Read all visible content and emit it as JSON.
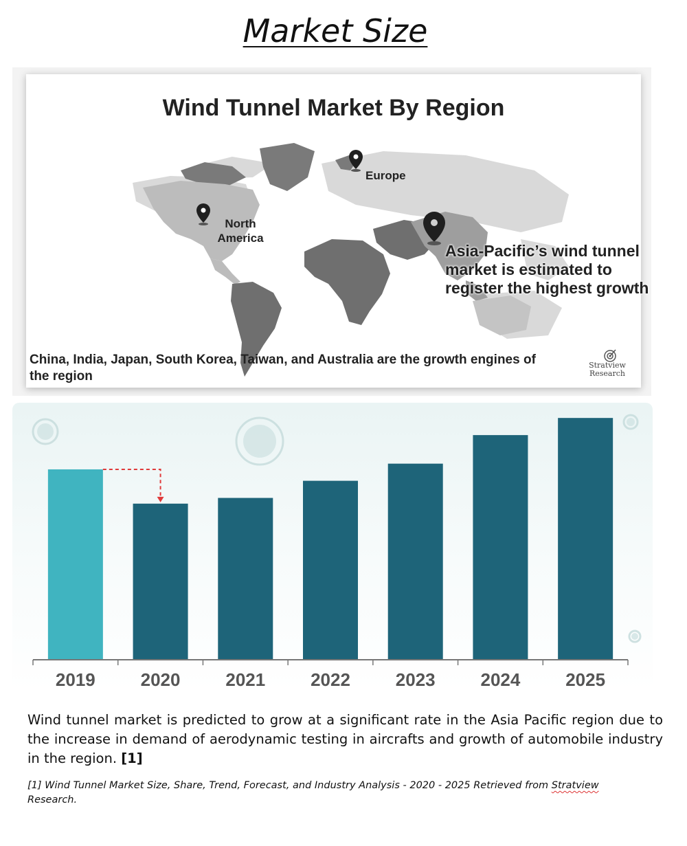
{
  "page": {
    "title": "Market Size"
  },
  "map": {
    "title": "Wind Tunnel Market By Region",
    "labels": {
      "europe": "Europe",
      "north_america_line1": "North",
      "north_america_line2": "America"
    },
    "asia_pacific_note": "Asia-Pacific’s wind tunnel market is estimated to register the highest growth",
    "bottom_note": "China, India, Japan, South Korea, Taiwan, and Australia are the growth engines of the region",
    "logo": {
      "line1": "Stratview",
      "line2": "Research",
      "icon": "target-icon"
    },
    "icons": [
      "location-pin-icon"
    ]
  },
  "chart_data": {
    "type": "bar",
    "categories": [
      "2019",
      "2020",
      "2021",
      "2022",
      "2023",
      "2024",
      "2025"
    ],
    "values": [
      100,
      82,
      85,
      94,
      103,
      118,
      127
    ],
    "relative_scale": true,
    "highlight_index": 0,
    "colors": {
      "highlight": "#40b4c0",
      "bar": "#1e6479",
      "arrow": "#e03a3a"
    },
    "annotation": "dashed arrow indicating decline from 2019 to 2020",
    "xlabel": "",
    "ylabel": "",
    "ylim": [
      0,
      135
    ]
  },
  "body": {
    "text": "Wind tunnel market is predicted to grow at a significant rate in the Asia Pacific region due to the increase in demand of aerodynamic testing in aircrafts and growth of automobile industry in the region.",
    "citation": "[1]"
  },
  "footnote": {
    "text": "[1] Wind Tunnel Market Size, Share, Trend, Forecast, and Industry Analysis - 2020 - 2025  Retrieved from",
    "source_word": "Stratview",
    "source_tail": "Research."
  }
}
